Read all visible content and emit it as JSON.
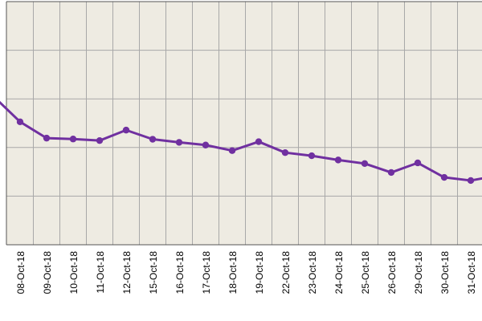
{
  "chart_data": {
    "type": "line",
    "x": [
      "08-Oct-18",
      "09-Oct-18",
      "10-Oct-18",
      "11-Oct-18",
      "12-Oct-18",
      "15-Oct-18",
      "16-Oct-18",
      "17-Oct-18",
      "18-Oct-18",
      "19-Oct-18",
      "22-Oct-18",
      "23-Oct-18",
      "24-Oct-18",
      "25-Oct-18",
      "26-Oct-18",
      "29-Oct-18",
      "30-Oct-18",
      "31-Oct-18"
    ],
    "series": [
      {
        "name": "",
        "values": [
          110.2,
          95.6,
          94.8,
          93.4,
          102.8,
          94.6,
          91.8,
          89.4,
          84.4,
          92.4,
          82.6,
          79.8,
          76.0,
          72.8,
          64.8,
          73.4,
          60.4,
          57.6
        ]
      }
    ],
    "leading_value": 133,
    "trailing_value": 62,
    "ylim": [
      0,
      218
    ],
    "y_gridlines": [
      0,
      43.6,
      87.2,
      130.8,
      174.4,
      218
    ],
    "grid": true,
    "title": "",
    "xlabel": "",
    "ylabel": "",
    "colors": {
      "line": "#7030a0",
      "plot_background": "#eeebe2",
      "grid": "#a8a8a8",
      "frame": "#555555"
    }
  }
}
